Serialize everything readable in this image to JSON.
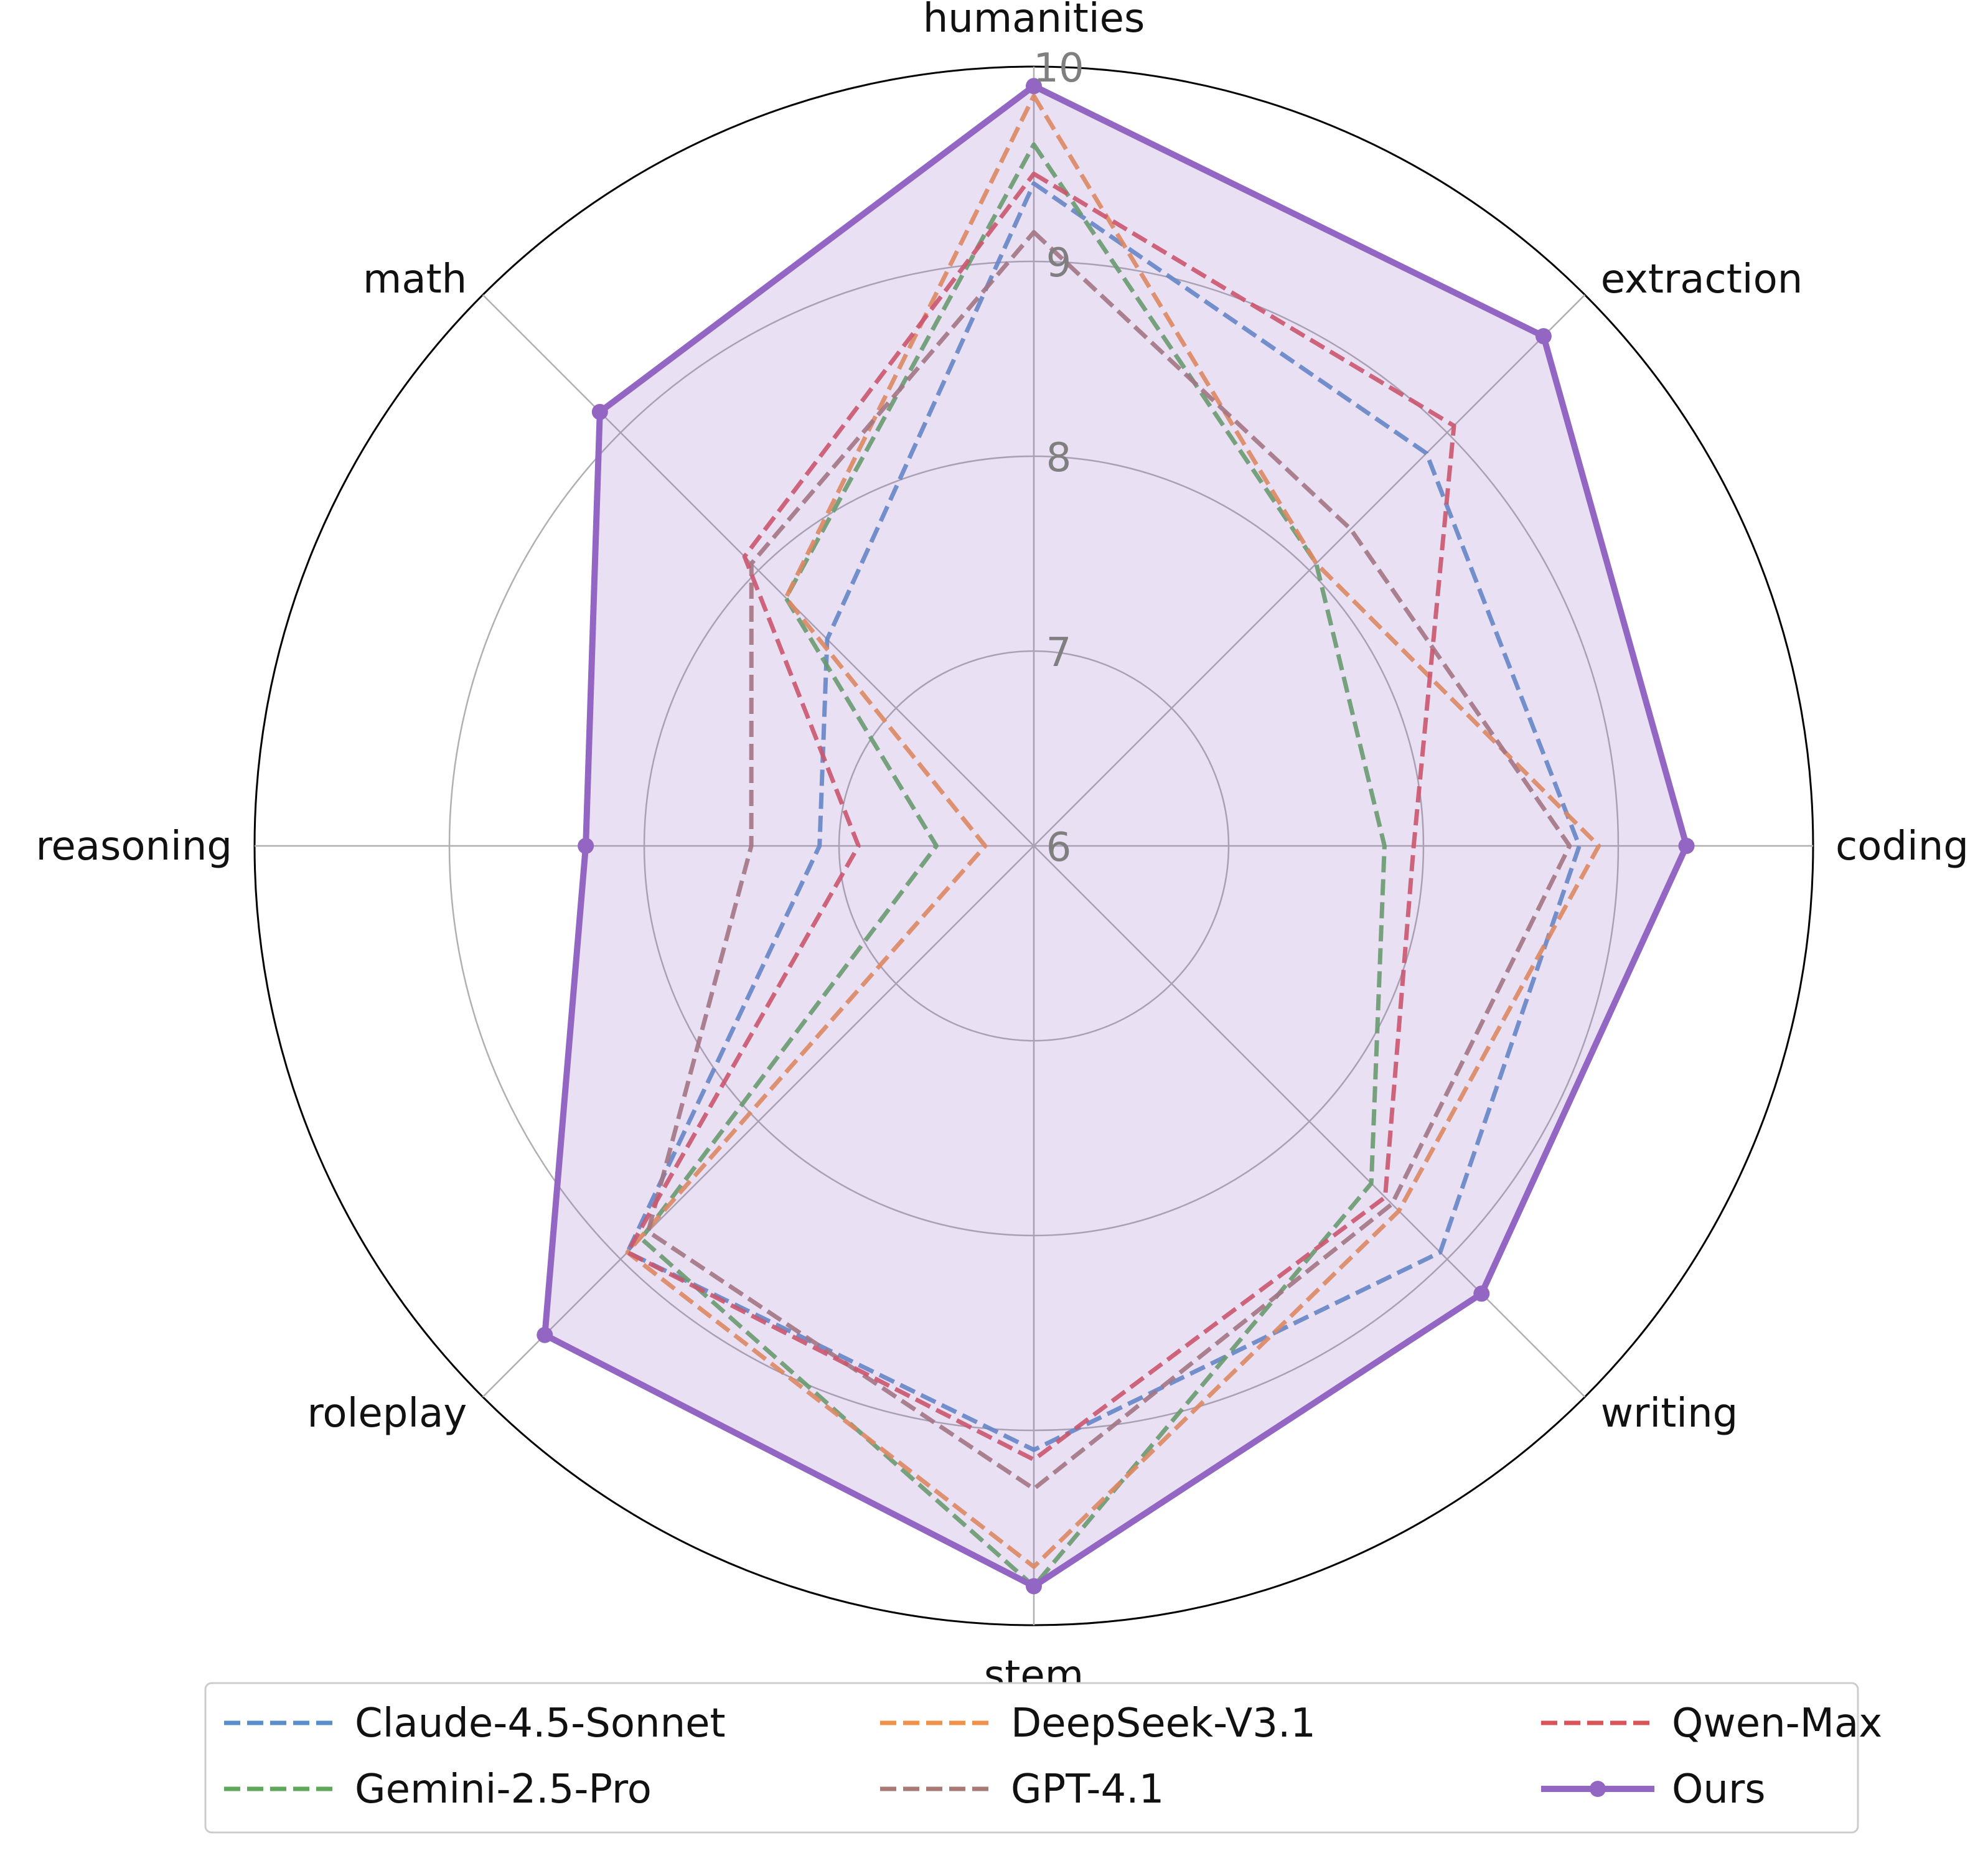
{
  "chart_data": {
    "type": "radar",
    "categories": [
      "humanities",
      "extraction",
      "coding",
      "writing",
      "stem",
      "roleplay",
      "reasoning",
      "math"
    ],
    "rlim": [
      6,
      10
    ],
    "rticks": [
      "6",
      "7",
      "8",
      "9",
      "10"
    ],
    "grid": true,
    "legend_position": "bottom-center",
    "series": [
      {
        "name": "Claude-4.5-Sonnet",
        "color": "#5b8ec9",
        "dashed": true,
        "markers": false,
        "values": [
          9.4,
          8.85,
          8.8,
          8.95,
          9.1,
          8.95,
          7.1,
          7.5
        ]
      },
      {
        "name": "Gemini-2.5-Pro",
        "color": "#5fa85b",
        "dashed": true,
        "markers": false,
        "values": [
          9.6,
          8.05,
          7.8,
          8.45,
          9.8,
          8.85,
          6.5,
          7.8
        ]
      },
      {
        "name": "DeepSeek-V3.1",
        "color": "#f0924a",
        "dashed": true,
        "markers": false,
        "values": [
          9.85,
          8.05,
          8.9,
          8.65,
          9.7,
          8.95,
          6.25,
          7.8
        ]
      },
      {
        "name": "GPT-4.1",
        "color": "#a87a75",
        "dashed": true,
        "markers": false,
        "values": [
          9.15,
          8.3,
          8.75,
          8.6,
          9.3,
          8.8,
          7.45,
          8.05
        ]
      },
      {
        "name": "Qwen-Max",
        "color": "#d9545a",
        "dashed": true,
        "markers": false,
        "values": [
          9.45,
          9.05,
          7.95,
          8.55,
          9.15,
          8.95,
          6.9,
          8.1
        ]
      },
      {
        "name": "Ours",
        "color": "#9266c2",
        "dashed": false,
        "markers": true,
        "fill": true,
        "values": [
          9.9,
          9.7,
          9.35,
          9.25,
          9.8,
          9.55,
          8.3,
          9.15
        ]
      }
    ]
  }
}
